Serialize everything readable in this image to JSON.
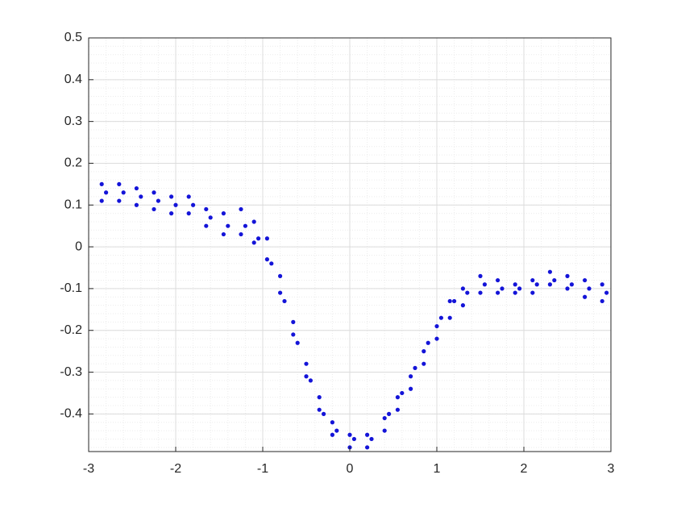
{
  "chart_data": {
    "type": "scatter",
    "color": "#1414d8",
    "xlim": [
      -3,
      3
    ],
    "ylim": [
      -0.49,
      0.5
    ],
    "xticks": [
      -3,
      -2,
      -1,
      0,
      1,
      2,
      3
    ],
    "yticks": [
      -0.4,
      -0.3,
      -0.2,
      -0.1,
      0,
      0.1,
      0.2,
      0.3,
      0.4,
      0.5
    ],
    "grid": true,
    "minor_grid": true,
    "x": [
      -2.85,
      -2.65,
      -2.45,
      -2.25,
      -2.05,
      -1.85,
      -1.65,
      -1.45,
      -1.25,
      -1.1,
      -0.95,
      -0.8,
      -0.65,
      -0.5,
      -0.35,
      -0.2,
      0,
      0.2,
      0.4,
      0.55,
      0.7,
      0.85,
      1.0,
      1.15,
      1.3,
      1.5,
      1.7,
      1.9,
      2.1,
      2.3,
      2.5,
      2.7,
      2.9,
      -2.8,
      -2.6,
      -2.4,
      -2.2,
      -2,
      -1.8,
      -1.6,
      -1.4,
      -1.2,
      -1.05,
      -0.9,
      -0.75,
      -0.6,
      -0.45,
      -0.3,
      -0.15,
      0.05,
      0.25,
      0.45,
      0.6,
      0.75,
      0.9,
      1.05,
      1.2,
      1.35,
      1.55,
      1.75,
      1.95,
      2.15,
      2.35,
      2.55,
      2.75,
      2.95,
      -2.85,
      -2.65,
      -2.45,
      -2.25,
      -2.05,
      -1.85,
      -1.65,
      -1.45,
      -1.25,
      -1.1,
      -0.95,
      -0.8,
      -0.65,
      -0.5,
      -0.35,
      -0.2,
      0,
      0.2,
      0.4,
      0.55,
      0.7,
      0.85,
      1.0,
      1.15,
      1.3,
      1.5,
      1.7,
      1.9,
      2.1,
      2.3,
      2.5,
      2.7,
      2.9
    ],
    "y": [
      0.15,
      0.15,
      0.14,
      0.13,
      0.12,
      0.12,
      0.09,
      0.08,
      0.09,
      0.06,
      0.02,
      -0.07,
      -0.18,
      -0.28,
      -0.36,
      -0.42,
      -0.45,
      -0.45,
      -0.41,
      -0.36,
      -0.31,
      -0.25,
      -0.19,
      -0.13,
      -0.1,
      -0.07,
      -0.08,
      -0.09,
      -0.08,
      -0.06,
      -0.07,
      -0.08,
      -0.09,
      0.13,
      0.13,
      0.12,
      0.11,
      0.1,
      0.1,
      0.07,
      0.05,
      0.05,
      0.02,
      -0.04,
      -0.13,
      -0.23,
      -0.32,
      -0.4,
      -0.44,
      -0.46,
      -0.46,
      -0.4,
      -0.35,
      -0.29,
      -0.23,
      -0.17,
      -0.13,
      -0.11,
      -0.09,
      -0.1,
      -0.1,
      -0.09,
      -0.08,
      -0.09,
      -0.1,
      -0.11,
      0.11,
      0.11,
      0.1,
      0.09,
      0.08,
      0.08,
      0.05,
      0.03,
      0.03,
      0.01,
      -0.03,
      -0.11,
      -0.21,
      -0.31,
      -0.39,
      -0.45,
      -0.48,
      -0.48,
      -0.44,
      -0.39,
      -0.34,
      -0.28,
      -0.22,
      -0.17,
      -0.14,
      -0.11,
      -0.11,
      -0.11,
      -0.11,
      -0.09,
      -0.1,
      -0.12,
      -0.13
    ]
  }
}
